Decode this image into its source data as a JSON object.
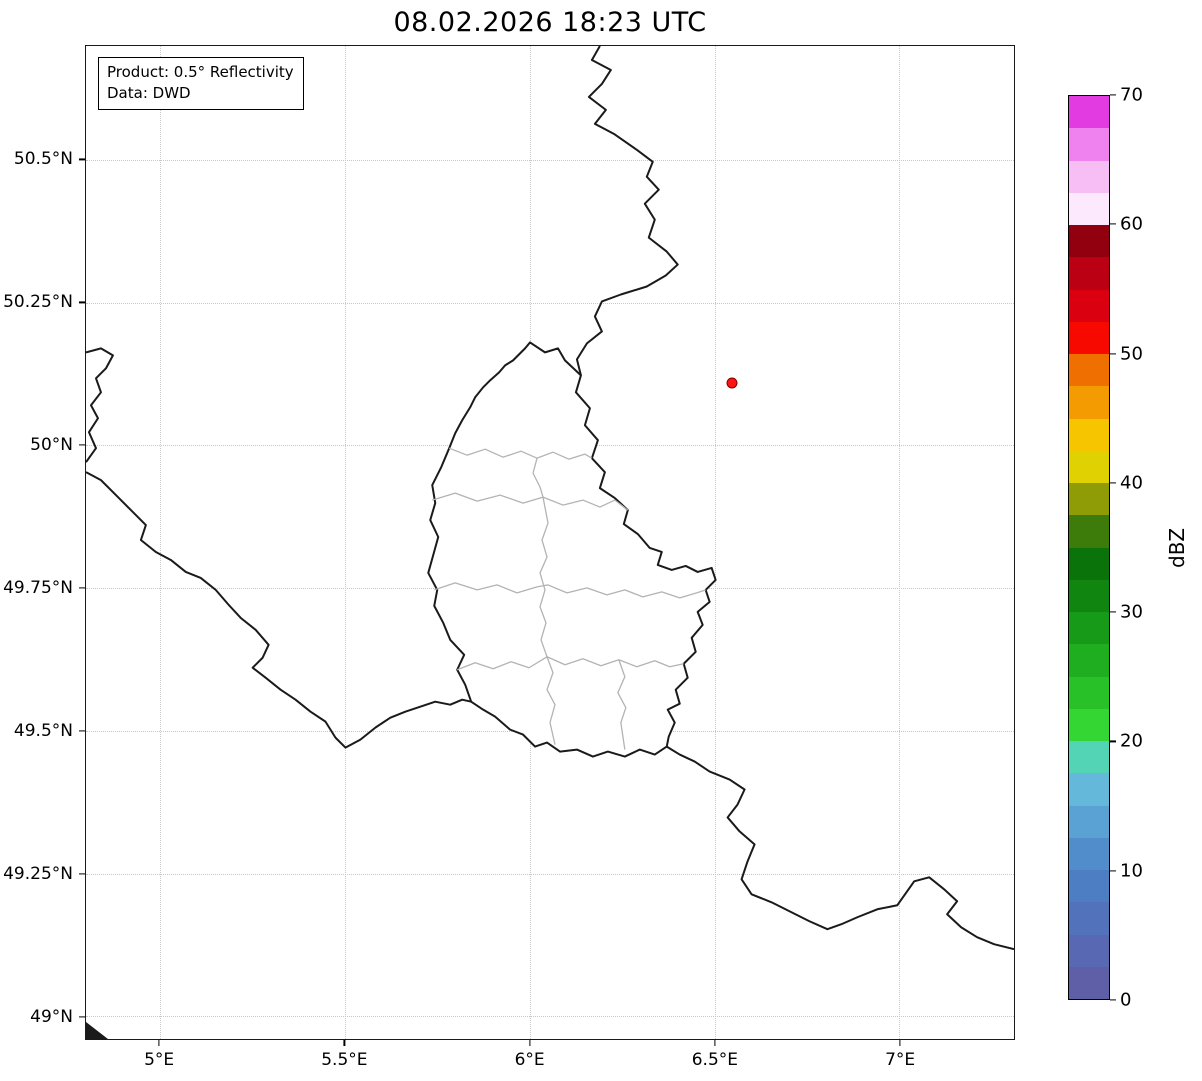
{
  "title": "08.02.2026 18:23 UTC",
  "info_box": {
    "line1": "Product: 0.5° Reflectivity",
    "line2": "Data: DWD"
  },
  "axes": {
    "x_range": [
      4.8,
      7.31
    ],
    "y_range": [
      48.96,
      50.7
    ],
    "grid_color": "#c7c7c7",
    "x_ticks": [
      {
        "value": 5.0,
        "label": "5°E"
      },
      {
        "value": 5.5,
        "label": "5.5°E"
      },
      {
        "value": 6.0,
        "label": "6°E"
      },
      {
        "value": 6.5,
        "label": "6.5°E"
      },
      {
        "value": 7.0,
        "label": "7°E"
      }
    ],
    "y_ticks": [
      {
        "value": 50.5,
        "label": "50.5°N"
      },
      {
        "value": 50.25,
        "label": "50.25°N"
      },
      {
        "value": 50.0,
        "label": "50°N"
      },
      {
        "value": 49.75,
        "label": "49.75°N"
      },
      {
        "value": 49.5,
        "label": "49.5°N"
      },
      {
        "value": 49.25,
        "label": "49.25°N"
      },
      {
        "value": 49.0,
        "label": "49°N"
      }
    ]
  },
  "radar_site": {
    "lon": 6.548,
    "lat": 50.11,
    "fill_color": "#ff1414",
    "edge_color": "#7a0000"
  },
  "map": {
    "region": "Luxembourg and surrounding borders (Belgium, Germany, France)",
    "country_border_color": "#1a1a1a",
    "canton_border_color": "#b3b3b3"
  },
  "colorbar": {
    "label": "dBZ",
    "range": [
      0,
      70
    ],
    "ticks": [
      0,
      10,
      20,
      30,
      40,
      50,
      60,
      70
    ],
    "segment_step_dbz": 2.5,
    "segments": [
      {
        "from": 0,
        "to": 2.5,
        "color": "#5f5fa8"
      },
      {
        "from": 2.5,
        "to": 5,
        "color": "#5868b2"
      },
      {
        "from": 5,
        "to": 7.5,
        "color": "#5272bb"
      },
      {
        "from": 7.5,
        "to": 10,
        "color": "#4d7dc3"
      },
      {
        "from": 10,
        "to": 12.5,
        "color": "#518dcb"
      },
      {
        "from": 12.5,
        "to": 15,
        "color": "#5aa2d3"
      },
      {
        "from": 15,
        "to": 17.5,
        "color": "#64b8da"
      },
      {
        "from": 17.5,
        "to": 20,
        "color": "#52d4b5"
      },
      {
        "from": 20,
        "to": 22.5,
        "color": "#33d633"
      },
      {
        "from": 22.5,
        "to": 25,
        "color": "#28c228"
      },
      {
        "from": 25,
        "to": 27.5,
        "color": "#1fae1f"
      },
      {
        "from": 27.5,
        "to": 30,
        "color": "#179a17"
      },
      {
        "from": 30,
        "to": 32.5,
        "color": "#108610"
      },
      {
        "from": 32.5,
        "to": 35,
        "color": "#0a730a"
      },
      {
        "from": 35,
        "to": 37.5,
        "color": "#3d7c0a"
      },
      {
        "from": 37.5,
        "to": 40,
        "color": "#8f9c06"
      },
      {
        "from": 40,
        "to": 42.5,
        "color": "#e0d102"
      },
      {
        "from": 42.5,
        "to": 45,
        "color": "#f6c500"
      },
      {
        "from": 45,
        "to": 47.5,
        "color": "#f39b00"
      },
      {
        "from": 47.5,
        "to": 50,
        "color": "#ef7000"
      },
      {
        "from": 50,
        "to": 52.5,
        "color": "#f80900"
      },
      {
        "from": 52.5,
        "to": 55,
        "color": "#db0010"
      },
      {
        "from": 55,
        "to": 57.5,
        "color": "#bb0013"
      },
      {
        "from": 57.5,
        "to": 60,
        "color": "#920010"
      },
      {
        "from": 60,
        "to": 62.5,
        "color": "#fde9fd"
      },
      {
        "from": 62.5,
        "to": 65,
        "color": "#f7bdf5"
      },
      {
        "from": 65,
        "to": 67.5,
        "color": "#ef82ee"
      },
      {
        "from": 67.5,
        "to": 70,
        "color": "#e23be2"
      }
    ]
  }
}
